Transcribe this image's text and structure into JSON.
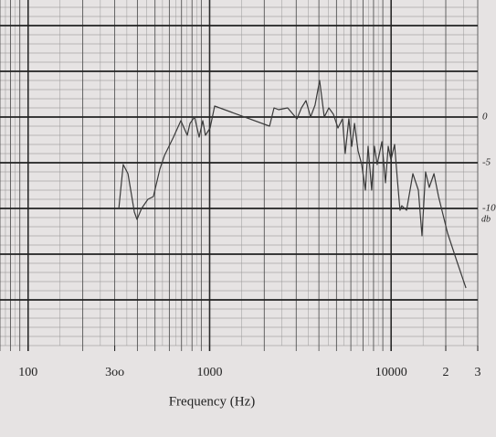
{
  "chart_data": {
    "type": "line",
    "xlabel": "Frequency (Hz)",
    "xscale": "log",
    "xlim": [
      70,
      30000
    ],
    "ylim": [
      -25,
      12.8
    ],
    "xticks": [
      100,
      {
        "value": 300,
        "label": "3oo"
      },
      1000,
      10000,
      {
        "value": 20000,
        "label": "2"
      },
      {
        "value": 30000,
        "label": "3"
      }
    ],
    "yticks": [
      0,
      -5,
      -10
    ],
    "y_unit_label": "db",
    "major_grid_y": [
      10,
      5,
      0,
      -5,
      -10,
      -15,
      -20
    ],
    "grid": true,
    "color": "#3a3a3a",
    "x": [
      316,
      334,
      355,
      385,
      398,
      422,
      457,
      490,
      532,
      564,
      632,
      694,
      753,
      780,
      826,
      875,
      917,
      948,
      1006,
      1066,
      2138,
      2265,
      2399,
      2692,
      3027,
      3206,
      3396,
      3597,
      3811,
      4036,
      4283,
      4538,
      4808,
      5093,
      5395,
      5585,
      5848,
      6067,
      6281,
      6577,
      6887,
      7211,
      7464,
      7816,
      8091,
      8375,
      8892,
      9311,
      9638,
      9977,
      10447,
      10814,
      11194,
      11455,
      12162,
      13183,
      14125,
      14791,
      15488,
      16218,
      17219,
      18239,
      20464,
      22961,
      25823
    ],
    "values": [
      -10,
      -5.2,
      -6.2,
      -10.4,
      -11.2,
      -10,
      -9,
      -8.7,
      -5.7,
      -4.2,
      -2.2,
      -0.4,
      -2,
      -0.7,
      0,
      -2.2,
      -0.4,
      -2,
      -1.2,
      1.2,
      -1,
      1,
      0.8,
      1,
      -0.2,
      1,
      1.8,
      0,
      1.3,
      4,
      0,
      1,
      0.3,
      -1.2,
      -0.2,
      -4,
      -0.2,
      -3.2,
      -0.7,
      -3.7,
      -5.2,
      -8,
      -3.2,
      -8,
      -3.2,
      -5.2,
      -2.7,
      -7.2,
      -3.2,
      -4.7,
      -3,
      -6.7,
      -10.2,
      -9.7,
      -10.2,
      -6.2,
      -8,
      -13,
      -6,
      -7.7,
      -6.2,
      -8.7,
      -12.7,
      -15.7,
      -18.7
    ]
  }
}
